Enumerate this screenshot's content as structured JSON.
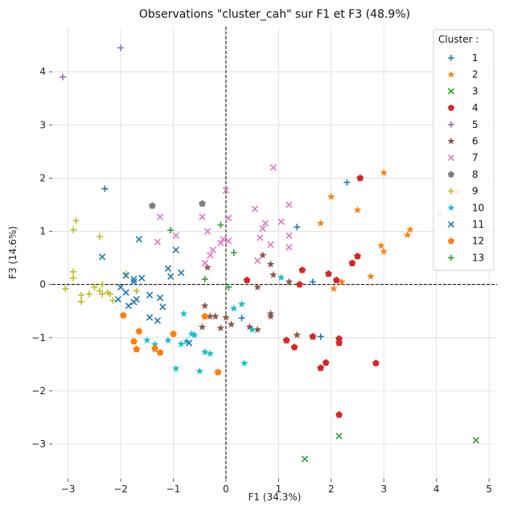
{
  "chart_data": {
    "type": "scatter",
    "title": "Observations \"cluster_cah\" sur F1 et F3 (48.9%)",
    "xlabel": "F1 (34.3%)",
    "ylabel": "F3 (14.6%)",
    "xlim": [
      -3.3,
      5.15
    ],
    "ylim": [
      -3.65,
      4.85
    ],
    "xticks": [
      -3,
      -2,
      -1,
      0,
      1,
      2,
      3,
      4,
      5
    ],
    "yticks": [
      -3,
      -2,
      -1,
      0,
      1,
      2,
      3,
      4
    ],
    "grid": true,
    "zero_lines": {
      "x": 0,
      "y": 0
    },
    "legend": {
      "title": "Cluster :",
      "placement": "top-right"
    },
    "series": [
      {
        "name": "1",
        "marker": "plus",
        "color": "#1f77b4",
        "points": [
          [
            -2.3,
            1.8
          ],
          [
            2.3,
            1.92
          ],
          [
            1.35,
            1.08
          ],
          [
            1.65,
            0.05
          ],
          [
            1.8,
            -0.98
          ],
          [
            0.3,
            -0.63
          ]
        ]
      },
      {
        "name": "2",
        "marker": "star",
        "color": "#ff7f0e",
        "points": [
          [
            3.0,
            2.1
          ],
          [
            2.0,
            1.65
          ],
          [
            2.5,
            1.4
          ],
          [
            1.8,
            1.15
          ],
          [
            3.5,
            1.03
          ],
          [
            3.45,
            0.93
          ],
          [
            2.95,
            0.73
          ],
          [
            3.0,
            0.62
          ],
          [
            4.05,
            1.32
          ],
          [
            4.4,
            1.73
          ],
          [
            2.75,
            0.15
          ],
          [
            2.4,
            0.4
          ],
          [
            2.2,
            0.05
          ],
          [
            2.05,
            -0.08
          ]
        ]
      },
      {
        "name": "3",
        "marker": "x",
        "color": "#2ca02c",
        "points": [
          [
            4.75,
            -2.93
          ],
          [
            2.15,
            -2.85
          ],
          [
            1.5,
            -3.28
          ]
        ]
      },
      {
        "name": "4",
        "marker": "pentagon",
        "color": "#d62728",
        "points": [
          [
            2.55,
            2.0
          ],
          [
            2.5,
            0.53
          ],
          [
            2.4,
            0.4
          ],
          [
            1.45,
            0.27
          ],
          [
            1.95,
            0.2
          ],
          [
            2.1,
            0.08
          ],
          [
            1.4,
            0.0
          ],
          [
            0.4,
            0.08
          ],
          [
            1.65,
            -0.98
          ],
          [
            2.15,
            -1.02
          ],
          [
            2.15,
            -1.1
          ],
          [
            1.15,
            -1.05
          ],
          [
            1.3,
            -1.18
          ],
          [
            1.9,
            -1.47
          ],
          [
            1.8,
            -1.57
          ],
          [
            2.85,
            -1.48
          ],
          [
            2.15,
            -2.45
          ]
        ]
      },
      {
        "name": "5",
        "marker": "plus",
        "color": "#9467bd",
        "points": [
          [
            -2.0,
            4.45
          ],
          [
            -3.1,
            3.9
          ]
        ]
      },
      {
        "name": "6",
        "marker": "star",
        "color": "#8c564b",
        "points": [
          [
            0.7,
            0.55
          ],
          [
            0.85,
            0.38
          ],
          [
            0.9,
            0.18
          ],
          [
            1.2,
            0.05
          ],
          [
            0.6,
            -0.05
          ],
          [
            0.85,
            -0.55
          ],
          [
            0.85,
            -0.6
          ],
          [
            0.45,
            -0.8
          ],
          [
            0.6,
            -0.85
          ],
          [
            1.35,
            -0.95
          ],
          [
            -0.2,
            -0.6
          ],
          [
            0.0,
            -0.62
          ],
          [
            0.1,
            -0.75
          ],
          [
            -0.4,
            -0.4
          ],
          [
            -0.45,
            -0.8
          ],
          [
            -0.3,
            -0.6
          ],
          [
            -0.1,
            -0.82
          ],
          [
            -0.35,
            0.32
          ]
        ]
      },
      {
        "name": "7",
        "marker": "x",
        "color": "#e377c2",
        "points": [
          [
            0.9,
            2.2
          ],
          [
            0.0,
            1.77
          ],
          [
            -1.25,
            1.27
          ],
          [
            -0.45,
            1.27
          ],
          [
            0.05,
            1.25
          ],
          [
            0.55,
            1.42
          ],
          [
            0.75,
            1.15
          ],
          [
            1.2,
            1.5
          ],
          [
            0.7,
            1.05
          ],
          [
            1.05,
            1.18
          ],
          [
            -0.35,
            1.0
          ],
          [
            -0.95,
            0.92
          ],
          [
            -0.05,
            0.85
          ],
          [
            0.05,
            0.82
          ],
          [
            -0.1,
            0.78
          ],
          [
            -0.25,
            0.65
          ],
          [
            -0.3,
            0.55
          ],
          [
            0.65,
            0.88
          ],
          [
            0.85,
            0.75
          ],
          [
            1.2,
            0.92
          ],
          [
            1.2,
            0.7
          ],
          [
            0.6,
            0.45
          ],
          [
            -1.3,
            0.8
          ],
          [
            -0.4,
            0.4
          ]
        ]
      },
      {
        "name": "8",
        "marker": "pentagon",
        "color": "#7f7f7f",
        "points": [
          [
            -1.4,
            1.48
          ],
          [
            -0.45,
            1.52
          ]
        ]
      },
      {
        "name": "9",
        "marker": "plus",
        "color": "#bcbd22",
        "points": [
          [
            -2.85,
            1.2
          ],
          [
            -2.9,
            1.03
          ],
          [
            -2.4,
            0.9
          ],
          [
            -2.9,
            0.24
          ],
          [
            -2.9,
            0.12
          ],
          [
            -1.9,
            0.2
          ],
          [
            -2.35,
            0.0
          ],
          [
            -2.5,
            -0.05
          ],
          [
            -2.75,
            -0.2
          ],
          [
            -2.75,
            -0.32
          ],
          [
            -2.6,
            -0.18
          ],
          [
            -2.35,
            -0.18
          ],
          [
            -2.25,
            -0.15
          ],
          [
            -2.2,
            -0.18
          ],
          [
            -2.15,
            -0.3
          ],
          [
            -3.05,
            -0.08
          ],
          [
            -2.4,
            -0.12
          ],
          [
            -1.7,
            -0.12
          ]
        ]
      },
      {
        "name": "10",
        "marker": "star",
        "color": "#17becf",
        "points": [
          [
            1.05,
            0.13
          ],
          [
            0.15,
            -0.45
          ],
          [
            0.3,
            -0.37
          ],
          [
            0.5,
            -0.85
          ],
          [
            0.35,
            -1.48
          ],
          [
            -0.8,
            -0.55
          ],
          [
            -0.65,
            -0.93
          ],
          [
            -0.6,
            -0.95
          ],
          [
            -0.75,
            -1.07
          ],
          [
            -1.1,
            -1.05
          ],
          [
            -0.85,
            -1.12
          ],
          [
            -1.5,
            -1.05
          ],
          [
            -1.35,
            -1.13
          ],
          [
            -1.35,
            -1.22
          ],
          [
            -0.4,
            -1.27
          ],
          [
            -0.3,
            -1.3
          ],
          [
            -0.95,
            -1.58
          ],
          [
            -0.5,
            -1.63
          ]
        ]
      },
      {
        "name": "11",
        "marker": "x",
        "color": "#1f77b4",
        "points": [
          [
            -2.35,
            0.52
          ],
          [
            -1.65,
            0.85
          ],
          [
            -1.1,
            0.3
          ],
          [
            -0.95,
            0.65
          ],
          [
            -0.85,
            0.22
          ],
          [
            -1.05,
            0.15
          ],
          [
            -1.9,
            0.17
          ],
          [
            -1.75,
            0.1
          ],
          [
            -1.6,
            0.12
          ],
          [
            -1.75,
            0.05
          ],
          [
            -2.0,
            -0.05
          ],
          [
            -1.9,
            -0.15
          ],
          [
            -2.05,
            -0.28
          ],
          [
            -1.85,
            -0.4
          ],
          [
            -1.75,
            -0.33
          ],
          [
            -1.7,
            -0.28
          ],
          [
            -1.45,
            -0.2
          ],
          [
            -1.25,
            -0.25
          ],
          [
            -1.2,
            -0.42
          ],
          [
            -1.45,
            -0.62
          ],
          [
            -1.3,
            -0.68
          ],
          [
            -0.7,
            -1.1
          ]
        ]
      },
      {
        "name": "12",
        "marker": "pentagon",
        "color": "#ff7f0e",
        "points": [
          [
            -1.95,
            -0.58
          ],
          [
            -1.65,
            -0.88
          ],
          [
            -1.75,
            -1.07
          ],
          [
            -1.7,
            -1.22
          ],
          [
            -1.35,
            -1.2
          ],
          [
            -1.25,
            -1.28
          ],
          [
            -1.0,
            -0.93
          ],
          [
            -0.4,
            -0.6
          ],
          [
            -0.15,
            -1.65
          ]
        ]
      },
      {
        "name": "13",
        "marker": "plus",
        "color": "#2ca02c",
        "points": [
          [
            -1.05,
            1.02
          ],
          [
            -0.1,
            1.12
          ],
          [
            0.15,
            0.6
          ],
          [
            -0.4,
            0.1
          ],
          [
            0.05,
            -0.05
          ]
        ]
      }
    ]
  }
}
